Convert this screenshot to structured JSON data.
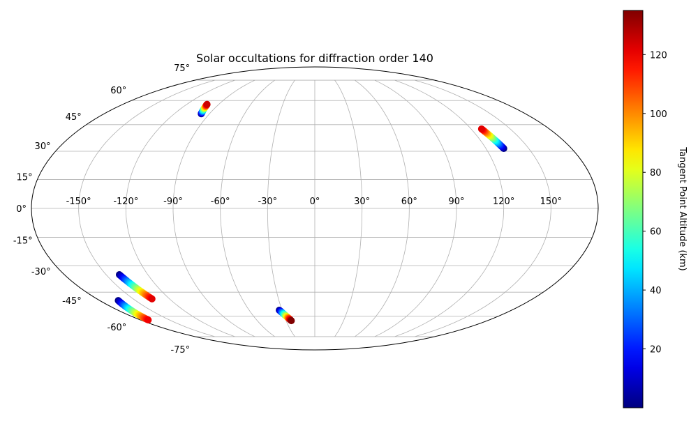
{
  "chart_data": {
    "type": "scatter",
    "projection": "mollweide",
    "title": "Solar occultations for diffraction order 140",
    "grid": true,
    "lon_ticks": [
      "-150°",
      "-120°",
      "-90°",
      "-60°",
      "-30°",
      "0°",
      "30°",
      "60°",
      "90°",
      "120°",
      "150°"
    ],
    "lat_ticks": [
      "75°",
      "60°",
      "45°",
      "30°",
      "15°",
      "0°",
      "-15°",
      "-30°",
      "-45°",
      "-60°",
      "-75°"
    ],
    "colormap": "jet",
    "colorbar": {
      "label": "Tangent Point Altitude (km)",
      "range": [
        0,
        135
      ],
      "ticks": [
        "20",
        "40",
        "60",
        "80",
        "100",
        "120"
      ],
      "location": "right"
    },
    "series": [
      {
        "points": [
          {
            "lon": -97,
            "lat": 51.5,
            "alt": 0
          },
          {
            "lon": -101,
            "lat": 57.5,
            "alt": 125
          }
        ]
      },
      {
        "points": [
          {
            "lon": 132.5,
            "lat": 31.5,
            "alt": 0
          },
          {
            "lon": 128,
            "lat": 42.5,
            "alt": 122
          }
        ]
      },
      {
        "points": [
          {
            "lon": -140.5,
            "lat": -35,
            "alt": 0
          },
          {
            "lon": -134.5,
            "lat": -49,
            "alt": 122
          }
        ]
      },
      {
        "points": [
          {
            "lon": -164.5,
            "lat": -50,
            "alt": 0
          },
          {
            "lon": -172,
            "lat": -62.5,
            "alt": 120
          }
        ]
      },
      {
        "points": [
          {
            "lon": -32.5,
            "lat": -56,
            "alt": 0
          },
          {
            "lon": -24.5,
            "lat": -63,
            "alt": 135
          }
        ]
      }
    ]
  }
}
